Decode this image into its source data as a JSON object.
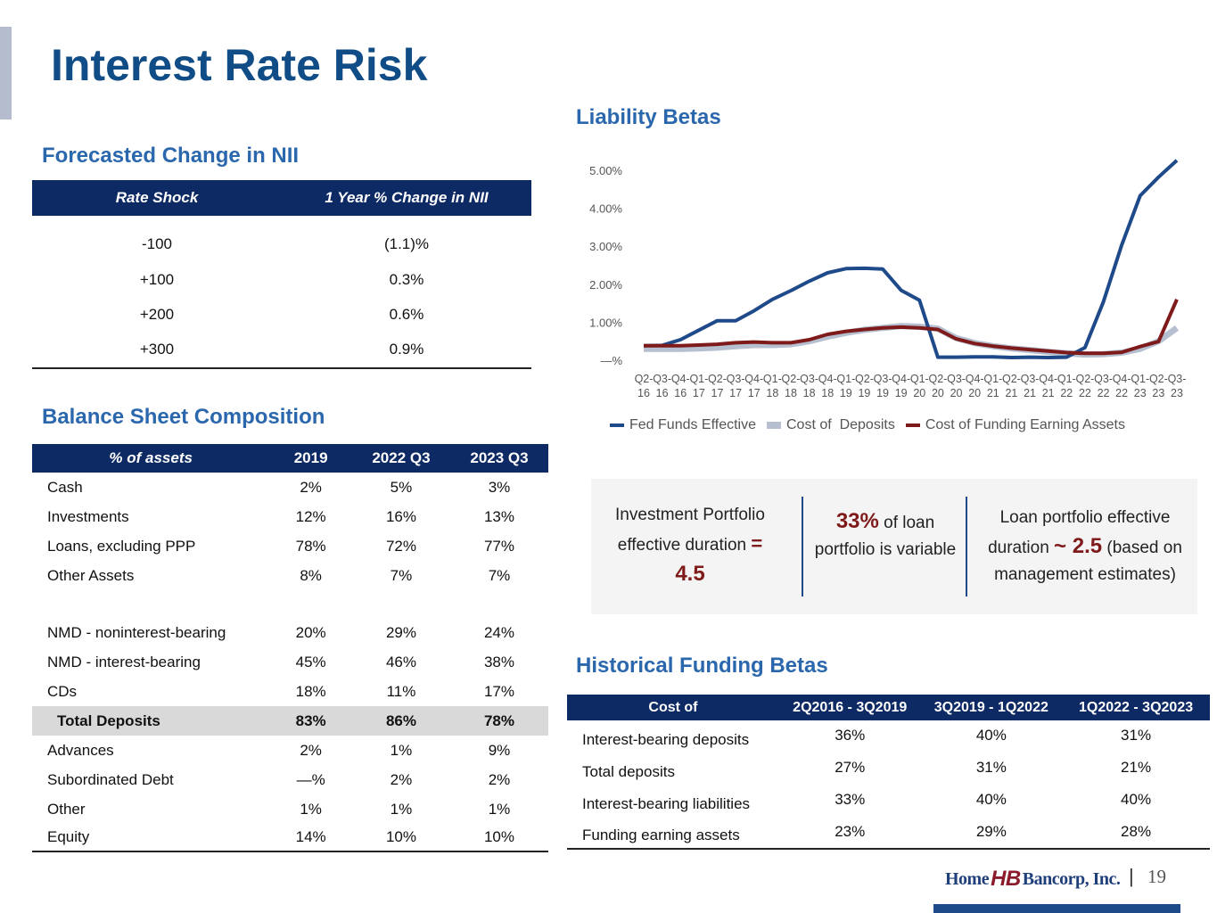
{
  "page": {
    "title": "Interest Rate Risk",
    "page_number": "19",
    "logo": {
      "part1": "Home",
      "monogram": "HB",
      "part2": "Bancorp, Inc."
    },
    "colors": {
      "navy": "#0e2a64",
      "title_blue": "#104c86",
      "section_blue": "#2a67ad",
      "accent_red": "#7f1a1a"
    }
  },
  "nii": {
    "section_title": "Forecasted Change in NII",
    "headers": [
      "Rate Shock",
      "1 Year % Change in NII"
    ],
    "rows": [
      [
        "-100",
        "(1.1)%"
      ],
      [
        "+100",
        "0.3%"
      ],
      [
        "+200",
        "0.6%"
      ],
      [
        "+300",
        "0.9%"
      ]
    ]
  },
  "balance_sheet": {
    "section_title": "Balance Sheet Composition",
    "headers": [
      "% of assets",
      "2019",
      "2022 Q3",
      "2023 Q3"
    ],
    "asset_rows": [
      [
        "Cash",
        "2%",
        "5%",
        "3%"
      ],
      [
        "Investments",
        "12%",
        "16%",
        "13%"
      ],
      [
        "Loans, excluding PPP",
        "78%",
        "72%",
        "77%"
      ],
      [
        "Other Assets",
        "8%",
        "7%",
        "7%"
      ]
    ],
    "deposit_rows": [
      [
        "NMD - noninterest-bearing",
        "20%",
        "29%",
        "24%"
      ],
      [
        "NMD - interest-bearing",
        "45%",
        "46%",
        "38%"
      ],
      [
        "CDs",
        "18%",
        "11%",
        "17%"
      ]
    ],
    "total_row": [
      "Total Deposits",
      "83%",
      "86%",
      "78%"
    ],
    "other_rows": [
      [
        "Advances",
        "2%",
        "1%",
        "9%"
      ],
      [
        "Subordinated Debt",
        "—%",
        "2%",
        "2%"
      ],
      [
        "Other",
        "1%",
        "1%",
        "1%"
      ],
      [
        "Equity",
        "14%",
        "10%",
        "10%"
      ]
    ]
  },
  "liability_betas": {
    "section_title": "Liability Betas"
  },
  "chart_data": {
    "type": "line",
    "title": "Liability Betas",
    "xlabel": "",
    "ylabel": "",
    "ylim": [
      0,
      5.0
    ],
    "yticks": [
      "—%",
      "1.00%",
      "2.00%",
      "3.00%",
      "4.00%",
      "5.00%"
    ],
    "ytick_values": [
      0,
      1,
      2,
      3,
      4,
      5
    ],
    "grid": false,
    "legend_position": "bottom",
    "categories": [
      [
        "Q2-",
        "16"
      ],
      [
        "Q3-",
        "16"
      ],
      [
        "Q4-",
        "16"
      ],
      [
        "Q1-",
        "17"
      ],
      [
        "Q2-",
        "17"
      ],
      [
        "Q3-",
        "17"
      ],
      [
        "Q4-",
        "17"
      ],
      [
        "Q1-",
        "18"
      ],
      [
        "Q2-",
        "18"
      ],
      [
        "Q3-",
        "18"
      ],
      [
        "Q4-",
        "18"
      ],
      [
        "Q1-",
        "19"
      ],
      [
        "Q2-",
        "19"
      ],
      [
        "Q3-",
        "19"
      ],
      [
        "Q4-",
        "19"
      ],
      [
        "Q1-",
        "20"
      ],
      [
        "Q2-",
        "20"
      ],
      [
        "Q3-",
        "20"
      ],
      [
        "Q4-",
        "20"
      ],
      [
        "Q1-",
        "21"
      ],
      [
        "Q2-",
        "21"
      ],
      [
        "Q3-",
        "21"
      ],
      [
        "Q4-",
        "21"
      ],
      [
        "Q1-",
        "22"
      ],
      [
        "Q2-",
        "22"
      ],
      [
        "Q3-",
        "22"
      ],
      [
        "Q4-",
        "22"
      ],
      [
        "Q1-",
        "23"
      ],
      [
        "Q2-",
        "23"
      ],
      [
        "Q3-",
        "23"
      ]
    ],
    "series": [
      {
        "name": "Fed Funds Effective",
        "color": "#1f4a8a",
        "values": [
          0.38,
          0.39,
          0.54,
          0.79,
          1.04,
          1.04,
          1.3,
          1.6,
          1.83,
          2.08,
          2.3,
          2.41,
          2.42,
          2.4,
          1.84,
          1.58,
          0.08,
          0.08,
          0.09,
          0.09,
          0.07,
          0.08,
          0.07,
          0.08,
          0.33,
          1.53,
          3.03,
          4.33,
          4.82,
          5.26
        ]
      },
      {
        "name": "Cost of  Deposits",
        "color": "#b5bfd0",
        "values": [
          0.3,
          0.3,
          0.3,
          0.31,
          0.33,
          0.37,
          0.4,
          0.4,
          0.42,
          0.5,
          0.62,
          0.72,
          0.8,
          0.85,
          0.9,
          0.88,
          0.83,
          0.58,
          0.45,
          0.37,
          0.31,
          0.27,
          0.22,
          0.18,
          0.15,
          0.16,
          0.2,
          0.3,
          0.5,
          0.85
        ]
      },
      {
        "name": "Cost of Funding Earning Assets",
        "color": "#7f1a1a",
        "values": [
          0.38,
          0.38,
          0.38,
          0.4,
          0.42,
          0.46,
          0.48,
          0.46,
          0.46,
          0.54,
          0.68,
          0.76,
          0.81,
          0.85,
          0.87,
          0.85,
          0.81,
          0.56,
          0.44,
          0.37,
          0.32,
          0.28,
          0.24,
          0.2,
          0.18,
          0.18,
          0.21,
          0.36,
          0.49,
          1.6
        ]
      }
    ]
  },
  "info": {
    "col1": {
      "text_a": "Investment Portfolio effective duration",
      "eq": "=",
      "value": "4.5"
    },
    "col2": {
      "value": "33%",
      "text": "of loan portfolio is variable"
    },
    "col3": {
      "text_a": "Loan portfolio effective duration",
      "value": "~ 2.5",
      "text_b": "(based on management estimates)"
    }
  },
  "funding_betas": {
    "section_title": "Historical Funding Betas",
    "headers": [
      "Cost of",
      "2Q2016 - 3Q2019",
      "3Q2019 - 1Q2022",
      "1Q2022 - 3Q2023"
    ],
    "rows": [
      [
        "Interest-bearing deposits",
        "36%",
        "40%",
        "31%"
      ],
      [
        "Total deposits",
        "27%",
        "31%",
        "21%"
      ],
      [
        "Interest-bearing liabilities",
        "33%",
        "40%",
        "40%"
      ],
      [
        "Funding earning assets",
        "23%",
        "29%",
        "28%"
      ]
    ]
  }
}
